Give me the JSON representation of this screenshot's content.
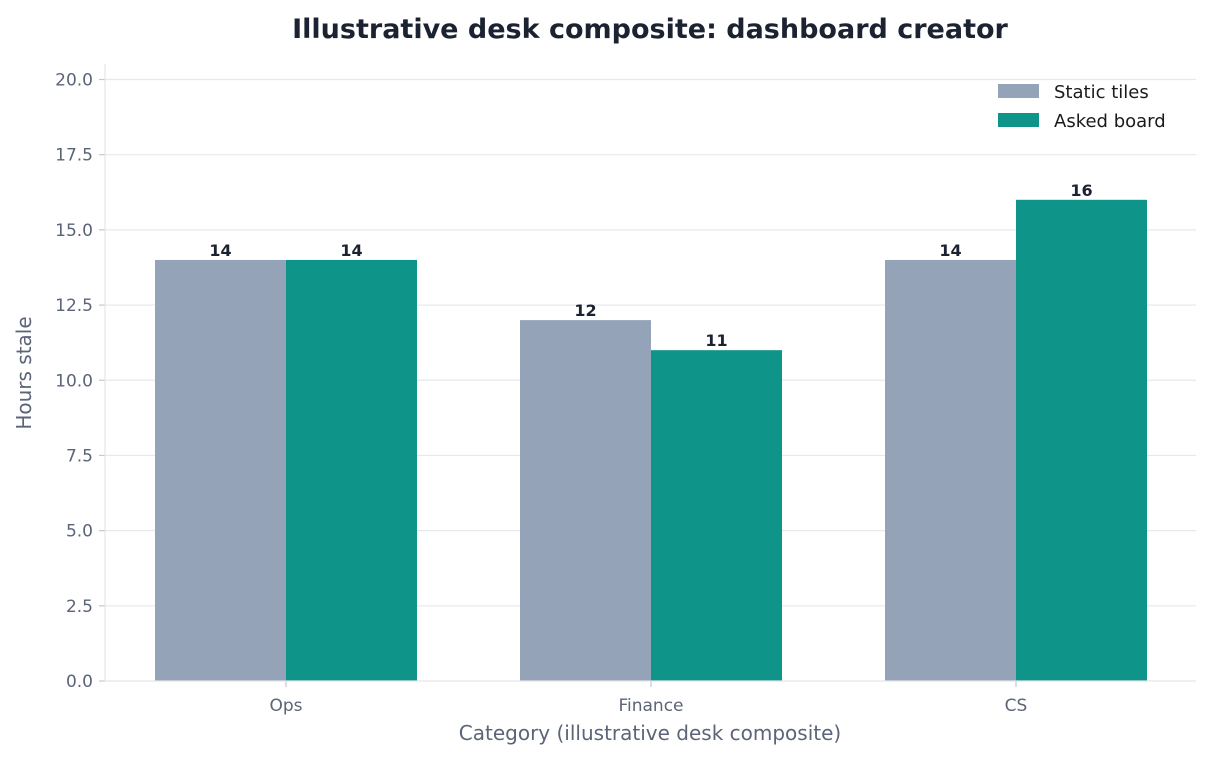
{
  "chart_data": {
    "type": "bar",
    "title": "Illustrative desk composite: dashboard creator",
    "xlabel": "Category (illustrative desk composite)",
    "ylabel": "Hours stale",
    "categories": [
      "Ops",
      "Finance",
      "CS"
    ],
    "series": [
      {
        "name": "Static tiles",
        "values": [
          14,
          12,
          14
        ],
        "color": "#94a3b8"
      },
      {
        "name": "Asked board",
        "values": [
          14,
          11,
          16
        ],
        "color": "#0e9488"
      }
    ],
    "ylim": [
      0,
      20
    ],
    "yticks": [
      "0.0",
      "2.5",
      "5.0",
      "7.5",
      "10.0",
      "12.5",
      "15.0",
      "17.5",
      "20.0"
    ],
    "grid": "horizontal",
    "legend_position": "top-right",
    "data_labels": true
  }
}
